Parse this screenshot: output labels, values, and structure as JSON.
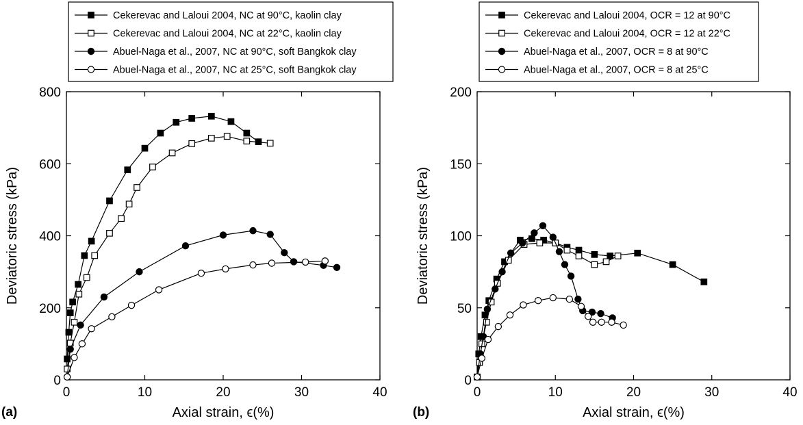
{
  "chart_data": [
    {
      "type": "line",
      "panel_label": "(a)",
      "xlabel": "Axial strain, ϵ(%)",
      "ylabel": "Deviatoric stress (kPa)",
      "xlim": [
        0,
        40
      ],
      "ylim": [
        0,
        800
      ],
      "xticks": [
        "0",
        "10",
        "20",
        "30",
        "40"
      ],
      "yticks": [
        "0",
        "200",
        "400",
        "600",
        "800"
      ],
      "grid": false,
      "legend_position": "top, above plot",
      "series": [
        {
          "name": "Cekerevac and Laloui 2004, NC at 90°C, kaolin clay",
          "marker": "filled-square",
          "x": [
            0.1,
            0.3,
            0.5,
            0.8,
            1.5,
            2.3,
            3.2,
            5.5,
            7.8,
            10,
            12,
            14,
            16,
            18.5,
            21,
            23,
            24.5
          ],
          "y": [
            58,
            132,
            186,
            216,
            265,
            345,
            385,
            497,
            583,
            643,
            685,
            715,
            726,
            732,
            717,
            685,
            661
          ]
        },
        {
          "name": "Cekerevac and Laloui 2004, NC at 22°C, kaolin clay",
          "marker": "open-square",
          "x": [
            0.1,
            0.5,
            1.0,
            1.6,
            2.6,
            3.6,
            5.5,
            7,
            8,
            9,
            11,
            13.5,
            16,
            18.5,
            20.5,
            23,
            26
          ],
          "y": [
            30,
            102,
            160,
            238,
            284,
            345,
            407,
            448,
            488,
            534,
            591,
            630,
            656,
            671,
            676,
            663,
            657
          ]
        },
        {
          "name": "Abuel-Naga et al., 2007, NC at 90°C, soft Bangkok clay",
          "marker": "filled-circle",
          "x": [
            0.1,
            0.5,
            1.8,
            4.8,
            9.3,
            15.2,
            20,
            23.8,
            26,
            27.8,
            29,
            32.8,
            34.5
          ],
          "y": [
            8,
            85,
            152,
            230,
            300,
            372,
            402,
            414,
            404,
            353,
            328,
            318,
            312
          ]
        },
        {
          "name": "Abuel-Naga et al., 2007, NC at 25°C, soft Bangkok clay",
          "marker": "open-circle",
          "x": [
            0.1,
            1.0,
            2.0,
            3.2,
            5.8,
            8.3,
            11.8,
            17.2,
            20.3,
            23.8,
            26.2,
            30.5,
            33
          ],
          "y": [
            8,
            62,
            100,
            142,
            175,
            207,
            250,
            296,
            308,
            319,
            324,
            327,
            330
          ]
        }
      ]
    },
    {
      "type": "line",
      "panel_label": "(b)",
      "xlabel": "Axial strain, ϵ(%)",
      "ylabel": "Deviatoric stress (kPa)",
      "xlim": [
        0,
        40
      ],
      "ylim": [
        0,
        200
      ],
      "xticks": [
        "0",
        "10",
        "20",
        "30",
        "40"
      ],
      "yticks": [
        "0",
        "50",
        "100",
        "150",
        "200"
      ],
      "grid": false,
      "legend_position": "top, above plot",
      "series": [
        {
          "name": "Cekerevac and Laloui 2004, OCR = 12 at 90°C",
          "marker": "filled-square",
          "x": [
            0,
            0.2,
            0.5,
            1.0,
            1.5,
            2.5,
            3.5,
            5.5,
            7,
            8.5,
            10,
            11.5,
            13,
            15,
            17,
            20.5,
            25,
            29
          ],
          "y": [
            2,
            18,
            30,
            45,
            55,
            70,
            82,
            97,
            98,
            97,
            95,
            92,
            90,
            87,
            86,
            88,
            80,
            68
          ]
        },
        {
          "name": "Cekerevac and Laloui 2004, OCR = 12 at 22°C",
          "marker": "open-square",
          "x": [
            0,
            0.3,
            0.6,
            1.2,
            1.8,
            2.6,
            4.0,
            6.0,
            8,
            10,
            11.5,
            13,
            15,
            16.5,
            18
          ],
          "y": [
            2,
            12,
            25,
            40,
            54,
            67,
            83,
            94,
            95,
            95,
            90,
            86,
            80,
            82,
            86
          ]
        },
        {
          "name": "Abuel-Naga et al., 2007, OCR = 8 at 90°C",
          "marker": "filled-circle",
          "x": [
            0,
            0.4,
            0.8,
            1.3,
            2.3,
            3.2,
            4.3,
            5.8,
            7.3,
            8.4,
            9.7,
            10.5,
            11.2,
            12,
            12.9,
            13.5,
            14.7,
            15.8,
            17.3
          ],
          "y": [
            2,
            18,
            30,
            49,
            63,
            75,
            88,
            95,
            102,
            107,
            99,
            89,
            80,
            72,
            56,
            48,
            47,
            46,
            43
          ]
        },
        {
          "name": "Abuel-Naga et al., 2007, OCR = 8 at 25°C",
          "marker": "open-circle",
          "x": [
            0,
            0.6,
            1.4,
            2.7,
            4.2,
            5.9,
            7.8,
            9.7,
            11.8,
            13.3,
            14.2,
            14.8,
            15.9,
            17.2,
            18.7
          ],
          "y": [
            2,
            15,
            28,
            37,
            45,
            52,
            55,
            57,
            56,
            51,
            44,
            40,
            40,
            40,
            38
          ]
        }
      ]
    }
  ]
}
